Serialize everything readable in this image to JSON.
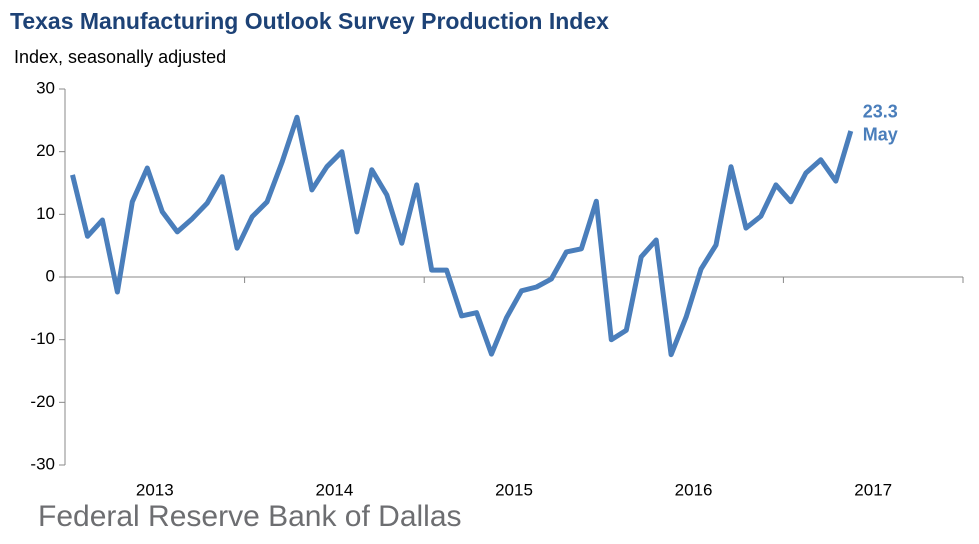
{
  "chart_data": {
    "type": "line",
    "title": "Texas Manufacturing Outlook Survey Production Index",
    "y_axis_label": "Index, seasonally adjusted",
    "source": "Federal Reserve Bank of Dallas",
    "annotation": "May",
    "x": [
      "2013",
      "2013",
      "2013",
      "2013",
      "2013",
      "2013",
      "2013",
      "2013",
      "2013",
      "2013",
      "2013",
      "2013",
      "2014",
      "2014",
      "2014",
      "2014",
      "2014",
      "2014",
      "2014",
      "2014",
      "2014",
      "2014",
      "2014",
      "2014",
      "2015",
      "2015",
      "2015",
      "2015",
      "2015",
      "2015",
      "2015",
      "2015",
      "2015",
      "2015",
      "2015",
      "2015",
      "2016",
      "2016",
      "2016",
      "2016",
      "2016",
      "2016",
      "2016",
      "2016",
      "2016",
      "2016",
      "2016",
      "2016",
      "2017",
      "2017",
      "2017",
      "2017",
      "2017"
    ],
    "xticks": [
      "2013",
      "2014",
      "2015",
      "2016",
      "2017"
    ],
    "series": [
      {
        "name": "Production Index",
        "color": "#4a7ebb",
        "values": [
          16.3,
          6.5,
          9.1,
          -2.4,
          12,
          17.4,
          10.4,
          7.2,
          9.3,
          11.8,
          16,
          4.6,
          9.6,
          12,
          18.3,
          25.5,
          13.9,
          17.6,
          20,
          7.2,
          17.1,
          13.1,
          5.4,
          14.7,
          1.1,
          1.1,
          -6.2,
          -5.7,
          -12.3,
          -6.5,
          -2.2,
          -1.6,
          -0.3,
          4,
          4.5,
          12.1,
          -10,
          -8.5,
          3.2,
          5.9,
          -12.4,
          -6.4,
          1.3,
          5.1,
          17.6,
          7.8,
          9.7,
          14.7,
          12,
          16.6,
          18.7,
          15.3,
          23.3
        ]
      }
    ],
    "ylim": [
      -30,
      30
    ],
    "yticks": [
      -30,
      -20,
      -10,
      0,
      10,
      20,
      30
    ],
    "grid": false
  }
}
